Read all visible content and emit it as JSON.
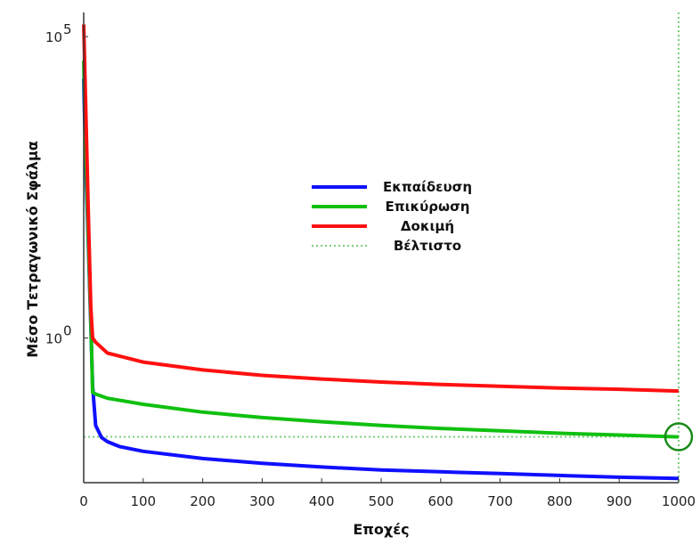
{
  "chart_data": {
    "type": "line",
    "xlabel": "Εποχές",
    "ylabel": "Μέσο Τετραγωνικό Σφάλμα",
    "xlim": [
      0,
      1000
    ],
    "ylim_log10": [
      -2.4,
      5.4
    ],
    "yscale": "log",
    "x_ticks": [
      "0",
      "100",
      "200",
      "300",
      "400",
      "500",
      "600",
      "700",
      "800",
      "900",
      "1000"
    ],
    "y_ticks": [
      {
        "base": "10",
        "exp": "0",
        "value": 1
      },
      {
        "base": "10",
        "exp": "5",
        "value": 100000
      }
    ],
    "grid": false,
    "legend_position": "center",
    "series": [
      {
        "name": "Εκπαίδευση",
        "color": "#1010ff",
        "style": "solid",
        "x": [
          0,
          3,
          8,
          12,
          15,
          20,
          30,
          40,
          60,
          100,
          200,
          300,
          400,
          500,
          600,
          700,
          800,
          900,
          1000
        ],
        "log10": [
          4.3,
          3.0,
          1.5,
          0.2,
          -0.8,
          -1.45,
          -1.65,
          -1.72,
          -1.8,
          -1.88,
          -2.0,
          -2.08,
          -2.14,
          -2.19,
          -2.22,
          -2.25,
          -2.28,
          -2.31,
          -2.33
        ]
      },
      {
        "name": "Επικύρωση",
        "color": "#10c010",
        "style": "solid",
        "x": [
          0,
          3,
          8,
          12,
          15,
          20,
          40,
          100,
          200,
          300,
          400,
          500,
          600,
          700,
          800,
          900,
          1000
        ],
        "log10": [
          4.6,
          3.3,
          1.6,
          0.3,
          -0.9,
          -0.93,
          -1.0,
          -1.1,
          -1.23,
          -1.32,
          -1.39,
          -1.45,
          -1.5,
          -1.54,
          -1.58,
          -1.61,
          -1.64
        ]
      },
      {
        "name": "Δοκιμή",
        "color": "#ff1010",
        "style": "solid",
        "x": [
          0,
          3,
          8,
          12,
          15,
          20,
          40,
          100,
          200,
          300,
          400,
          500,
          600,
          700,
          800,
          900,
          1000
        ],
        "log10": [
          5.2,
          4.0,
          2.0,
          0.5,
          0.0,
          -0.07,
          -0.25,
          -0.4,
          -0.53,
          -0.62,
          -0.68,
          -0.73,
          -0.77,
          -0.8,
          -0.83,
          -0.85,
          -0.88
        ]
      }
    ],
    "best": {
      "name": "Βέλτιστο",
      "color": "#7ccc7c",
      "style": "dotted",
      "x": 1000,
      "log10": -1.64
    }
  }
}
